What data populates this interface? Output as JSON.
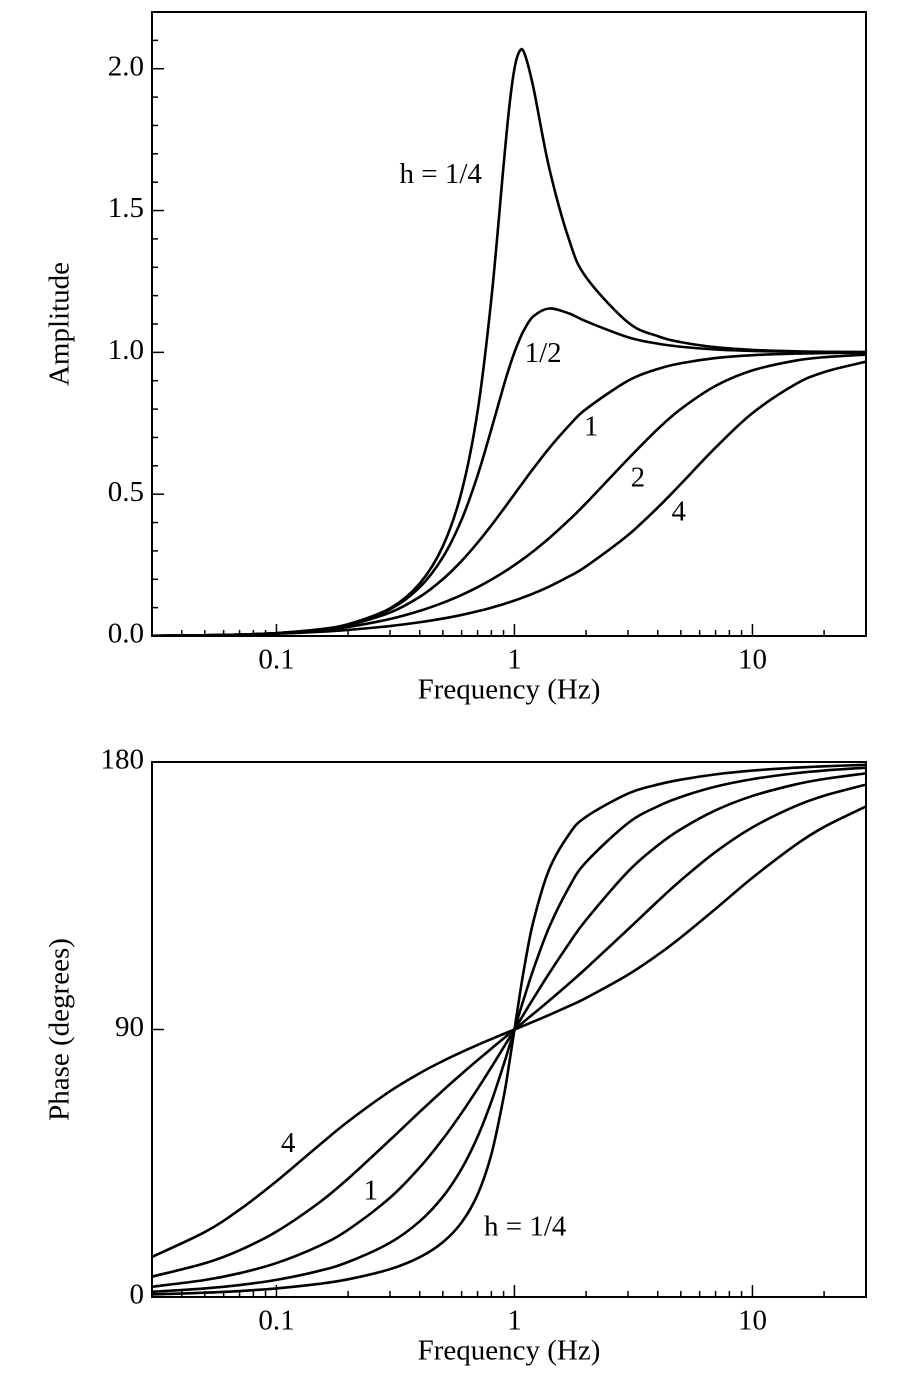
{
  "chart_data": [
    {
      "type": "line",
      "xlabel": "Frequency (Hz)",
      "ylabel": "Amplitude",
      "xscale": "log",
      "xlim": [
        0.03,
        30
      ],
      "xticks": [
        0.1,
        1,
        10
      ],
      "xminorticks": [
        0.03,
        0.04,
        0.05,
        0.06,
        0.07,
        0.08,
        0.09,
        0.2,
        0.3,
        0.4,
        0.5,
        0.6,
        0.7,
        0.8,
        0.9,
        2,
        3,
        4,
        5,
        6,
        7,
        8,
        9,
        20,
        30
      ],
      "ylim": [
        0,
        2.2
      ],
      "yticks": [
        {
          "value": 0,
          "label": "0.0"
        },
        {
          "value": 0.5,
          "label": "0.5"
        },
        {
          "value": 1,
          "label": "1.0"
        },
        {
          "value": 1.5,
          "label": "1.5"
        },
        {
          "value": 2,
          "label": "2.0"
        }
      ],
      "yminorticks": [
        0.1,
        0.2,
        0.3,
        0.4,
        0.6,
        0.7,
        0.8,
        0.9,
        1.1,
        1.2,
        1.3,
        1.4,
        1.6,
        1.7,
        1.8,
        1.9,
        2.1,
        2.2
      ],
      "x": [
        0.03,
        0.05,
        0.07,
        0.1,
        0.15,
        0.2,
        0.3,
        0.4,
        0.5,
        0.6,
        0.7,
        0.8,
        0.9,
        0.95,
        1,
        1.05,
        1.1,
        1.2,
        1.4,
        1.7,
        2,
        3,
        4,
        5,
        7,
        10,
        15,
        20,
        30
      ],
      "series": [
        {
          "color": "#000000",
          "values": [
            0.0009,
            0.0025,
            0.0049,
            0.0101,
            0.023,
            0.0414,
            0.0976,
            0.1853,
            0.3162,
            0.5093,
            0.7921,
            1.1893,
            1.6582,
            1.8612,
            2,
            2.061,
            2.0554,
            1.9354,
            1.6497,
            1.3946,
            1.2649,
            1.1057,
            1.0573,
            1.0361,
            1.0181,
            1.0088,
            1.0039,
            1.0022,
            1.001
          ]
        },
        {
          "color": "#000000",
          "values": [
            0.0009,
            0.0025,
            0.0049,
            0.0101,
            0.0228,
            0.0408,
            0.0939,
            0.172,
            0.2774,
            0.4104,
            0.5658,
            0.7295,
            0.8806,
            0.945,
            1,
            1.045,
            1.0805,
            1.1267,
            1.1546,
            1.1369,
            1.1094,
            1.0534,
            1.0307,
            1.0198,
            1.0101,
            1.005,
            1.0022,
            1.0013,
            1.0006
          ]
        },
        {
          "color": "#000000",
          "values": [
            0.0009,
            0.0025,
            0.0049,
            0.0099,
            0.022,
            0.0385,
            0.0826,
            0.1379,
            0.2,
            0.2647,
            0.3289,
            0.3902,
            0.4475,
            0.4744,
            0.5,
            0.5244,
            0.5475,
            0.5902,
            0.6622,
            0.7429,
            0.8,
            0.9,
            0.9412,
            0.9615,
            0.98,
            0.9901,
            0.9956,
            0.9975,
            0.9989
          ]
        },
        {
          "color": "#000000",
          "values": [
            0.0009,
            0.0025,
            0.0047,
            0.0094,
            0.0196,
            0.032,
            0.0598,
            0.0885,
            0.117,
            0.1449,
            0.1722,
            0.1987,
            0.2247,
            0.2374,
            0.25,
            0.2624,
            0.2747,
            0.2987,
            0.345,
            0.4095,
            0.4682,
            0.624,
            0.7295,
            0.8002,
            0.8818,
            0.9365,
            0.9703,
            0.983,
            0.9923
          ]
        },
        {
          "color": "#000000",
          "values": [
            0.0009,
            0.0023,
            0.0043,
            0.0079,
            0.0145,
            0.0214,
            0.0351,
            0.0484,
            0.0614,
            0.0743,
            0.0871,
            0.0998,
            0.1125,
            0.1187,
            0.125,
            0.1312,
            0.1375,
            0.1498,
            0.1744,
            0.2105,
            0.2457,
            0.3558,
            0.4527,
            0.5359,
            0.6644,
            0.7857,
            0.8854,
            0.9305,
            0.9672
          ]
        }
      ],
      "annotations": [
        {
          "text": "h = 1/4",
          "x": 0.49,
          "y": 1.62
        },
        {
          "text": "1/2",
          "x": 1.32,
          "y": 0.99
        },
        {
          "text": "1",
          "x": 2.1,
          "y": 0.73
        },
        {
          "text": "2",
          "x": 3.3,
          "y": 0.55
        },
        {
          "text": "4",
          "x": 4.9,
          "y": 0.43
        }
      ]
    },
    {
      "type": "line",
      "xlabel": "Frequency (Hz)",
      "ylabel": "Phase (degrees)",
      "xscale": "log",
      "xlim": [
        0.03,
        30
      ],
      "xticks": [
        0.1,
        1,
        10
      ],
      "xminorticks": [
        0.03,
        0.04,
        0.05,
        0.06,
        0.07,
        0.08,
        0.09,
        0.2,
        0.3,
        0.4,
        0.5,
        0.6,
        0.7,
        0.8,
        0.9,
        2,
        3,
        4,
        5,
        6,
        7,
        8,
        9,
        20,
        30
      ],
      "ylim": [
        0,
        180
      ],
      "yticks": [
        0,
        90,
        180
      ],
      "x": [
        0.03,
        0.05,
        0.07,
        0.1,
        0.15,
        0.2,
        0.3,
        0.4,
        0.5,
        0.6,
        0.7,
        0.8,
        0.9,
        0.95,
        1,
        1.05,
        1.1,
        1.2,
        1.4,
        1.7,
        2,
        3,
        4,
        5,
        7,
        10,
        15,
        20,
        30
      ],
      "series": [
        {
          "color": "#000000",
          "values": [
            0.86,
            1.44,
            2.01,
            2.89,
            4.39,
            5.95,
            9.36,
            13.39,
            18.43,
            25.11,
            34.46,
            48.01,
            67.11,
            78.4,
            90,
            101.05,
            110.9,
            126.25,
            143.9,
            155.79,
            161.57,
            169.38,
            172.41,
            174.05,
            175.83,
            177.11,
            178.08,
            178.56,
            179.04
          ]
        },
        {
          "color": "#000000",
          "values": [
            1.72,
            2.87,
            4.02,
            5.77,
            8.73,
            11.77,
            18.25,
            25.46,
            33.69,
            43.15,
            53.92,
            65.77,
            78.08,
            84.14,
            90,
            95.58,
            100.81,
            110.14,
            124.44,
            138.03,
            146.31,
            159.44,
            165.07,
            168.23,
            171.7,
            174.23,
            176.17,
            177.13,
            178.09
          ]
        },
        {
          "color": "#000000",
          "values": [
            3.44,
            5.72,
            8.01,
            11.42,
            17.06,
            22.62,
            33.4,
            43.6,
            53.13,
            61.93,
            70,
            77.32,
            83.97,
            87.06,
            90,
            92.79,
            95.45,
            100.39,
            108.92,
            119.07,
            126.87,
            143.13,
            151.93,
            157.38,
            163.74,
            168.58,
            172.37,
            174.28,
            176.18
          ]
        },
        {
          "color": "#000000",
          "values": [
            6.85,
            11.34,
            15.72,
            22,
            31.54,
            39.81,
            52.83,
            62.3,
            69.44,
            75.07,
            79.68,
            83.58,
            86.98,
            88.53,
            90,
            91.4,
            92.73,
            95.24,
            99.73,
            105.53,
            110.56,
            123.69,
            133.15,
            140.19,
            149.74,
            158,
            165,
            168.66,
            172.4
          ]
        },
        {
          "color": "#000000",
          "values": [
            13.51,
            21.85,
            29.37,
            38.94,
            50.84,
            59.04,
            69.23,
            75.29,
            79.38,
            82.41,
            84.8,
            86.78,
            88.49,
            89.26,
            90,
            90.7,
            91.37,
            92.62,
            94.9,
            97.91,
            100.62,
            108.43,
            115.11,
            120.96,
            130.6,
            141.06,
            151.82,
            158.15,
            165.05
          ]
        }
      ],
      "annotations": [
        {
          "text": "4",
          "x": 0.112,
          "y": 51
        },
        {
          "text": "1",
          "x": 0.249,
          "y": 35
        },
        {
          "text": "h = 1/4",
          "x": 1.11,
          "y": 23
        }
      ]
    }
  ]
}
